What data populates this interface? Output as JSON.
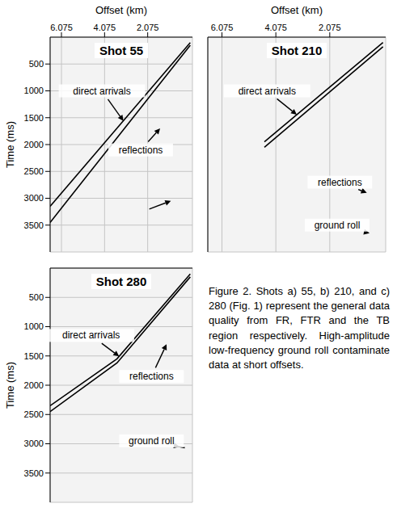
{
  "chart_data": [
    {
      "type": "shot_gather",
      "title": "Shot 55",
      "x_label": "Offset (km)",
      "y_label": "Time (ms)",
      "xlim": [
        0,
        6.6
      ],
      "ylim": [
        0,
        4000
      ],
      "xticks": [
        6.075,
        4.075,
        2.075
      ],
      "yticks": [
        500,
        1000,
        1500,
        2000,
        2500,
        3000,
        3500
      ],
      "grid": true,
      "series": [
        {
          "color": "#000000",
          "x": [
            0.1,
            6.6
          ],
          "values": [
            100,
            3150
          ]
        },
        {
          "color": "#000000",
          "x": [
            0.1,
            6.6
          ],
          "values": [
            150,
            3450
          ]
        }
      ],
      "annotations": [
        {
          "text": "direct arrivals",
          "x": 4.2,
          "y": 1000,
          "arrow_to": [
            3.2,
            1560
          ]
        },
        {
          "text": "reflections",
          "x": 2.4,
          "y": 2100,
          "arrow_to": [
            1.5,
            1700
          ]
        },
        {
          "x": 2.0,
          "y": 3200,
          "arrow_to": [
            1.0,
            3050
          ]
        }
      ]
    },
    {
      "type": "shot_gather",
      "title": "Shot 210",
      "x_label": "Offset (km)",
      "xlim": [
        0,
        6.6
      ],
      "ylim": [
        0,
        4000
      ],
      "xticks": [
        6.075,
        4.075,
        2.075
      ],
      "yticks": [
        500,
        1000,
        1500,
        2000,
        2500,
        3000,
        3500
      ],
      "tick_labels": "x",
      "grid": true,
      "series": [
        {
          "color": "#000000",
          "x": [
            0.1,
            4.5
          ],
          "values": [
            100,
            1950
          ]
        },
        {
          "color": "#000000",
          "x": [
            0.1,
            4.5
          ],
          "values": [
            180,
            2050
          ]
        }
      ],
      "annotations": [
        {
          "text": "direct arrivals",
          "x": 4.4,
          "y": 1000,
          "arrow_to": [
            3.3,
            1444
          ]
        },
        {
          "text": "reflections",
          "x": 1.7,
          "y": 2700,
          "arrow_to": [
            0.7,
            2900
          ]
        },
        {
          "text": "ground roll",
          "x": 1.8,
          "y": 3500,
          "arrow_to": [
            0.6,
            3650
          ]
        }
      ]
    },
    {
      "type": "shot_gather",
      "title": "Shot 280",
      "y_label": "Time (ms)",
      "xlim": [
        0,
        6.6
      ],
      "ylim": [
        0,
        4000
      ],
      "xticks": [
        6.075,
        4.075,
        2.075
      ],
      "yticks": [
        500,
        1000,
        1500,
        2000,
        2500,
        3000,
        3500
      ],
      "tick_labels": "y",
      "grid": true,
      "series": [
        {
          "color": "#000000",
          "x": [
            0.1,
            3.5,
            6.6
          ],
          "values": [
            100,
            1550,
            2350
          ]
        },
        {
          "color": "#000000",
          "x": [
            0.1,
            3.5,
            6.6
          ],
          "values": [
            150,
            1620,
            2450
          ]
        }
      ],
      "annotations": [
        {
          "text": "direct arrivals",
          "x": 4.7,
          "y": 1150,
          "arrow_to": [
            3.4,
            1507
          ]
        },
        {
          "text": "reflections",
          "x": 1.9,
          "y": 1850,
          "arrow_to": [
            1.2,
            1300
          ]
        },
        {
          "text": "ground roll",
          "x": 1.9,
          "y": 2950,
          "arrow_to": [
            0.6,
            3050
          ]
        }
      ]
    }
  ],
  "caption": "Figure 2. Shots a) 55, b) 210, and c) 280 (Fig. 1) represent the general data quality from FR, FTR and the TB region respectively. High-amplitude low-frequency ground roll contaminate data at short offsets."
}
